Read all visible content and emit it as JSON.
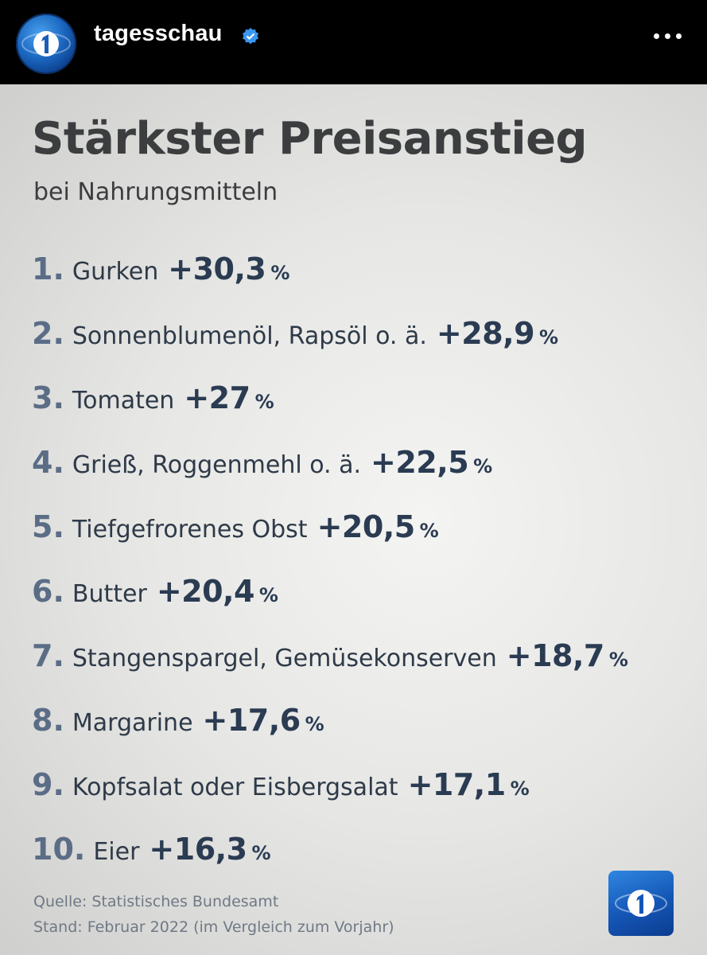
{
  "header": {
    "account_name": "tagesschau",
    "avatar_icon": "tagesschau-logo-icon",
    "verified_icon": "verified-badge-icon",
    "more_icon": "more-options-icon"
  },
  "card": {
    "title": "Stärkster Preisanstieg",
    "subtitle": "bei Nahrungsmitteln",
    "items": [
      {
        "rank": "1.",
        "label": "Gurken",
        "value": "+30,3",
        "unit": "%"
      },
      {
        "rank": "2.",
        "label": "Sonnenblumenöl, Rapsöl o. ä.",
        "value": "+28,9",
        "unit": "%"
      },
      {
        "rank": "3.",
        "label": "Tomaten",
        "value": "+27",
        "unit": "%"
      },
      {
        "rank": "4.",
        "label": "Grieß, Roggenmehl o. ä.",
        "value": "+22,5",
        "unit": "%"
      },
      {
        "rank": "5.",
        "label": "Tiefgefrorenes Obst",
        "value": "+20,5",
        "unit": "%"
      },
      {
        "rank": "6.",
        "label": "Butter",
        "value": "+20,4",
        "unit": "%"
      },
      {
        "rank": "7.",
        "label": "Stangenspargel, Gemüsekonserven",
        "value": "+18,7",
        "unit": "%"
      },
      {
        "rank": "8.",
        "label": "Margarine",
        "value": "+17,6",
        "unit": "%"
      },
      {
        "rank": "9.",
        "label": "Kopfsalat oder Eisbergsalat",
        "value": "+17,1",
        "unit": "%"
      },
      {
        "rank": "10.",
        "label": "Eier",
        "value": "+16,3",
        "unit": "%"
      }
    ],
    "source": "Quelle: Statistisches Bundesamt",
    "stand": "Stand: Februar 2022 (im Vergleich zum Vorjahr)",
    "logo_icon": "ard-das-erste-logo-icon"
  },
  "colors": {
    "rank": "#5b6d86",
    "value": "#2a3b52",
    "title": "#3b3d3f",
    "logo": "#1456b6"
  }
}
